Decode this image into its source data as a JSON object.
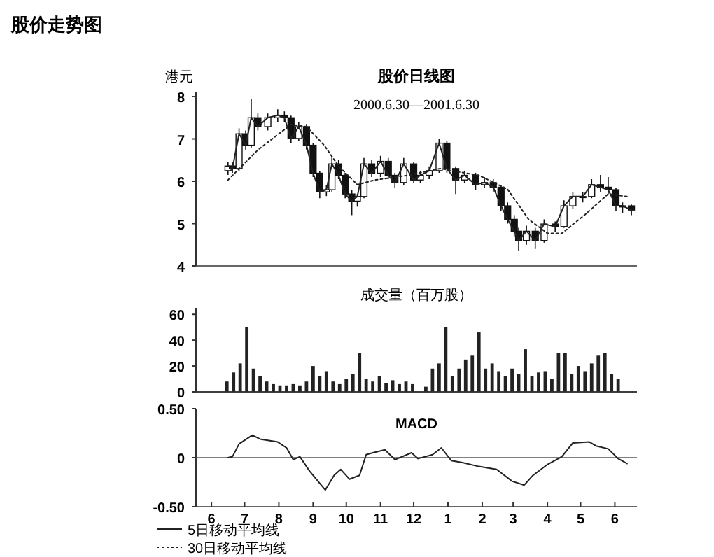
{
  "chart_data": [
    {
      "type": "candlestick",
      "title": "股价走势图",
      "subtitle": "股价日线图",
      "annotations": [
        "2000.6.30—2001.6.30"
      ],
      "ylabel": "港元",
      "xlim": [
        "2000-06-01",
        "2001-07-05"
      ],
      "ylim": [
        4,
        8.1
      ],
      "yticks": [
        4,
        5,
        6,
        7,
        8
      ],
      "tick_labels": "y",
      "legend": "bottom",
      "series": [
        {
          "color": "#111111",
          "x": [
            "2000-06-30",
            "2000-07-04",
            "2000-07-10",
            "2000-07-16",
            "2000-07-21",
            "2000-07-27",
            "2000-08-05",
            "2000-08-14",
            "2000-08-20",
            "2000-08-26",
            "2000-09-02",
            "2000-09-09",
            "2000-09-15",
            "2000-09-21",
            "2000-09-27",
            "2000-10-02",
            "2000-10-08",
            "2000-10-14",
            "2000-10-20",
            "2000-10-25",
            "2000-10-31",
            "2000-11-07",
            "2000-11-15",
            "2000-11-22",
            "2000-11-28",
            "2000-12-06",
            "2000-12-15",
            "2000-12-21",
            "2000-12-29",
            "2001-01-07",
            "2001-01-14",
            "2001-01-22",
            "2001-01-30",
            "2001-02-09",
            "2001-02-17",
            "2001-02-25",
            "2001-03-04",
            "2001-03-10",
            "2001-03-16",
            "2001-03-20",
            "2001-03-27",
            "2001-04-04",
            "2001-04-12",
            "2001-04-22",
            "2001-04-30",
            "2001-05-08",
            "2001-05-17",
            "2001-05-25",
            "2001-06-02",
            "2001-06-09",
            "2001-06-16",
            "2001-06-22",
            "2001-06-30"
          ],
          "ohlc": [
            [
              6.25,
              6.45,
              6.15,
              6.36
            ],
            [
              6.36,
              6.45,
              6.2,
              6.3
            ],
            [
              6.3,
              7.25,
              6.25,
              7.12
            ],
            [
              7.12,
              7.2,
              6.75,
              6.85
            ],
            [
              6.85,
              7.95,
              6.8,
              7.5
            ],
            [
              7.5,
              7.6,
              7.2,
              7.29
            ],
            [
              7.29,
              7.6,
              7.2,
              7.5
            ],
            [
              7.5,
              7.7,
              7.4,
              7.56
            ],
            [
              7.56,
              7.65,
              7.4,
              7.5
            ],
            [
              7.5,
              7.55,
              6.9,
              7.01
            ],
            [
              7.01,
              7.4,
              6.95,
              7.29
            ],
            [
              7.29,
              7.35,
              6.75,
              6.85
            ],
            [
              6.85,
              6.9,
              6.1,
              6.19
            ],
            [
              6.19,
              6.25,
              5.6,
              5.75
            ],
            [
              5.75,
              5.9,
              5.65,
              5.8
            ],
            [
              5.8,
              6.6,
              5.75,
              6.41
            ],
            [
              6.41,
              6.5,
              6.05,
              6.14
            ],
            [
              6.14,
              6.2,
              5.6,
              5.7
            ],
            [
              5.7,
              5.8,
              5.2,
              5.53
            ],
            [
              5.53,
              5.7,
              5.4,
              5.64
            ],
            [
              5.64,
              6.55,
              5.6,
              6.41
            ],
            [
              6.41,
              6.5,
              6.1,
              6.19
            ],
            [
              6.19,
              6.6,
              6.1,
              6.47
            ],
            [
              6.47,
              6.55,
              6.05,
              6.14
            ],
            [
              6.14,
              6.2,
              5.85,
              5.97
            ],
            [
              5.97,
              6.55,
              5.9,
              6.41
            ],
            [
              6.41,
              6.45,
              5.95,
              6.03
            ],
            [
              6.03,
              6.25,
              5.95,
              6.14
            ],
            [
              6.14,
              6.35,
              6.05,
              6.25
            ],
            [
              6.25,
              7.0,
              6.2,
              6.9
            ],
            [
              6.9,
              6.95,
              6.2,
              6.3
            ],
            [
              6.3,
              6.35,
              5.7,
              6.03
            ],
            [
              6.03,
              6.25,
              5.95,
              6.14
            ],
            [
              6.14,
              6.2,
              5.8,
              5.92
            ],
            [
              5.92,
              6.1,
              5.85,
              5.97
            ],
            [
              5.97,
              6.05,
              5.75,
              5.86
            ],
            [
              5.86,
              5.9,
              5.3,
              5.42
            ],
            [
              5.42,
              5.5,
              5.0,
              5.1
            ],
            [
              5.1,
              5.2,
              4.7,
              4.82
            ],
            [
              4.82,
              4.9,
              4.35,
              4.6
            ],
            [
              4.6,
              4.95,
              4.5,
              4.82
            ],
            [
              4.82,
              4.9,
              4.4,
              4.6
            ],
            [
              4.6,
              5.1,
              4.55,
              4.99
            ],
            [
              4.99,
              5.05,
              4.8,
              4.93
            ],
            [
              4.93,
              5.55,
              4.9,
              5.42
            ],
            [
              5.42,
              5.75,
              5.35,
              5.64
            ],
            [
              5.64,
              5.75,
              5.5,
              5.64
            ],
            [
              5.64,
              6.05,
              5.6,
              5.92
            ],
            [
              5.92,
              6.15,
              5.75,
              5.86
            ],
            [
              5.86,
              6.1,
              5.7,
              5.8
            ],
            [
              5.8,
              5.85,
              5.3,
              5.42
            ],
            [
              5.42,
              5.5,
              5.25,
              5.42
            ],
            [
              5.42,
              5.45,
              5.2,
              5.32
            ]
          ]
        },
        {
          "type": "line",
          "name": "5日移动平均线",
          "color": "#222222",
          "line_style": "solid",
          "x": [
            "2000-06-30",
            "2000-07-04",
            "2000-07-10",
            "2000-07-16",
            "2000-07-21",
            "2000-07-27",
            "2000-08-05",
            "2000-08-14",
            "2000-08-20",
            "2000-08-26",
            "2000-09-02",
            "2000-09-09",
            "2000-09-15",
            "2000-09-21",
            "2000-09-27",
            "2000-10-02",
            "2000-10-08",
            "2000-10-14",
            "2000-10-20",
            "2000-10-25",
            "2000-10-31",
            "2000-11-07",
            "2000-11-15",
            "2000-11-22",
            "2000-11-28",
            "2000-12-06",
            "2000-12-15",
            "2000-12-21",
            "2000-12-29",
            "2001-01-07",
            "2001-01-14",
            "2001-01-22",
            "2001-01-30",
            "2001-02-09",
            "2001-02-17",
            "2001-02-25",
            "2001-03-04",
            "2001-03-10",
            "2001-03-16",
            "2001-03-20",
            "2001-03-27",
            "2001-04-04",
            "2001-04-12",
            "2001-04-22",
            "2001-04-30",
            "2001-05-08",
            "2001-05-17",
            "2001-05-25",
            "2001-06-02",
            "2001-06-09",
            "2001-06-16",
            "2001-06-22",
            "2001-06-30"
          ],
          "values": [
            6.36,
            6.3,
            7.12,
            6.85,
            7.5,
            7.29,
            7.5,
            7.56,
            7.5,
            7.01,
            7.29,
            6.85,
            6.19,
            5.75,
            5.8,
            6.41,
            6.14,
            5.7,
            5.53,
            5.64,
            6.41,
            6.19,
            6.47,
            6.14,
            5.97,
            6.41,
            6.03,
            6.14,
            6.25,
            6.9,
            6.3,
            6.03,
            6.14,
            5.92,
            5.97,
            5.86,
            5.42,
            5.1,
            4.82,
            4.6,
            4.82,
            4.6,
            4.99,
            4.93,
            5.42,
            5.64,
            5.64,
            5.92,
            5.86,
            5.8,
            5.42,
            5.42,
            5.32
          ]
        },
        {
          "type": "line",
          "name": "30日移动平均线",
          "color": "#222222",
          "line_style": "dotted",
          "x": [
            "2000-06-30",
            "2000-07-27",
            "2000-08-26",
            "2000-09-09",
            "2000-09-25",
            "2000-10-08",
            "2000-10-25",
            "2000-11-10",
            "2000-12-10",
            "2001-01-08",
            "2001-02-12",
            "2001-03-10",
            "2001-03-29",
            "2001-04-15",
            "2001-04-28",
            "2001-05-19",
            "2001-06-09",
            "2001-06-26"
          ],
          "values": [
            6.03,
            6.74,
            7.34,
            7.29,
            6.85,
            6.36,
            5.92,
            6.03,
            6.14,
            6.3,
            6.14,
            5.81,
            5.1,
            4.77,
            4.77,
            5.21,
            5.7,
            5.64
          ]
        }
      ]
    },
    {
      "type": "bar",
      "title": "成交量（百万股）",
      "xlim": [
        "2000-06-01",
        "2001-07-05"
      ],
      "ylim": [
        0,
        65
      ],
      "yticks": [
        0,
        20,
        40,
        60
      ],
      "tick_labels": "y",
      "series": [
        {
          "color": "#222222",
          "x": [
            "2000-06-29",
            "2000-07-05",
            "2000-07-11",
            "2000-07-17",
            "2000-07-23",
            "2000-07-29",
            "2000-08-04",
            "2000-08-10",
            "2000-08-16",
            "2000-08-22",
            "2000-08-28",
            "2000-09-03",
            "2000-09-09",
            "2000-09-15",
            "2000-09-21",
            "2000-09-27",
            "2000-10-03",
            "2000-10-09",
            "2000-10-15",
            "2000-10-21",
            "2000-10-27",
            "2000-11-02",
            "2000-11-08",
            "2000-11-14",
            "2000-11-20",
            "2000-11-26",
            "2000-12-02",
            "2000-12-08",
            "2000-12-14",
            "2000-12-26",
            "2001-01-01",
            "2001-01-07",
            "2001-01-13",
            "2001-01-19",
            "2001-01-25",
            "2001-01-31",
            "2001-02-06",
            "2001-02-12",
            "2001-02-18",
            "2001-02-24",
            "2001-03-02",
            "2001-03-08",
            "2001-03-14",
            "2001-03-20",
            "2001-03-26",
            "2001-04-01",
            "2001-04-07",
            "2001-04-13",
            "2001-04-19",
            "2001-04-25",
            "2001-05-01",
            "2001-05-07",
            "2001-05-13",
            "2001-05-19",
            "2001-05-25",
            "2001-05-31",
            "2001-06-06",
            "2001-06-12",
            "2001-06-18"
          ],
          "values": [
            8,
            15,
            22,
            50,
            18,
            12,
            8,
            6,
            5,
            5,
            6,
            5,
            8,
            20,
            12,
            16,
            8,
            6,
            10,
            14,
            30,
            10,
            8,
            12,
            7,
            9,
            6,
            8,
            6,
            4,
            18,
            22,
            50,
            12,
            18,
            25,
            28,
            46,
            18,
            22,
            16,
            12,
            18,
            14,
            33,
            12,
            15,
            16,
            10,
            30,
            30,
            14,
            20,
            16,
            22,
            28,
            30,
            14,
            10
          ]
        }
      ]
    },
    {
      "type": "line",
      "title": "MACD",
      "xlim": [
        "2000-06-01",
        "2001-07-05"
      ],
      "ylim": [
        -0.5,
        0.5
      ],
      "yticks": [
        {
          "value": -0.5,
          "label": "-0.50"
        },
        0,
        {
          "value": 0.5,
          "label": "0.50"
        }
      ],
      "xticks": [
        {
          "value": "2000-06-15",
          "label": "6"
        },
        {
          "value": "2000-07-15",
          "label": "7"
        },
        {
          "value": "2000-08-15",
          "label": "8"
        },
        {
          "value": "2000-09-15",
          "label": "9"
        },
        {
          "value": "2000-10-15",
          "label": "10"
        },
        {
          "value": "2000-11-15",
          "label": "11"
        },
        {
          "value": "2000-12-15",
          "label": "12"
        },
        {
          "value": "2001-01-15",
          "label": "1"
        },
        {
          "value": "2001-02-15",
          "label": "2"
        },
        {
          "value": "2001-03-15",
          "label": "3"
        },
        {
          "value": "2001-04-15",
          "label": "4"
        },
        {
          "value": "2001-05-15",
          "label": "5"
        },
        {
          "value": "2001-06-15",
          "label": "6"
        }
      ],
      "ref_lines": [
        {
          "axis": "y",
          "value": 0,
          "color": "#555555"
        }
      ],
      "series": [
        {
          "color": "#222222",
          "line_style": "solid",
          "x": [
            "2000-06-30",
            "2000-07-04",
            "2000-07-10",
            "2000-07-22",
            "2000-07-29",
            "2000-08-14",
            "2000-08-22",
            "2000-08-28",
            "2000-09-03",
            "2000-09-12",
            "2000-09-26",
            "2000-10-04",
            "2000-10-10",
            "2000-10-18",
            "2000-10-27",
            "2000-11-02",
            "2000-11-08",
            "2000-11-19",
            "2000-11-28",
            "2000-12-13",
            "2000-12-19",
            "2001-01-01",
            "2001-01-09",
            "2001-01-18",
            "2001-01-28",
            "2001-02-12",
            "2001-02-28",
            "2001-03-14",
            "2001-03-25",
            "2001-04-02",
            "2001-04-15",
            "2001-04-28",
            "2001-05-08",
            "2001-05-23",
            "2001-05-29",
            "2001-06-09",
            "2001-06-18",
            "2001-06-26"
          ],
          "values": [
            0,
            0.01,
            0.14,
            0.23,
            0.19,
            0.16,
            0.1,
            -0.02,
            0.01,
            -0.14,
            -0.33,
            -0.18,
            -0.12,
            -0.22,
            -0.18,
            0.03,
            0.05,
            0.08,
            -0.02,
            0.05,
            -0.01,
            0.03,
            0.1,
            -0.03,
            -0.05,
            -0.09,
            -0.12,
            -0.24,
            -0.28,
            -0.18,
            -0.07,
            0.01,
            0.15,
            0.16,
            0.12,
            0.09,
            -0.01,
            -0.06
          ]
        }
      ]
    }
  ]
}
